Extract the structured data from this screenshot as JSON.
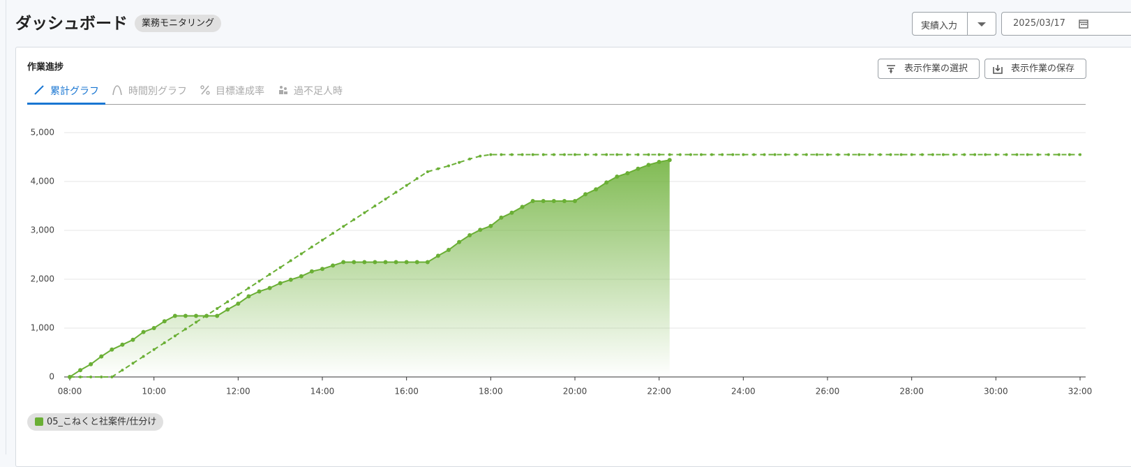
{
  "header": {
    "title": "ダッシュボード",
    "badge": "業務モニタリング",
    "mode_select": "実績入力",
    "date": "2025/03/17"
  },
  "card": {
    "title": "作業進捗",
    "buttons": [
      "表示作業の選択",
      "表示作業の保存"
    ],
    "tabs": [
      "累計グラフ",
      "時間別グラフ",
      "目標達成率",
      "過不足人時"
    ],
    "active_tab": 0
  },
  "chart_data": {
    "type": "line",
    "x": [
      8,
      8.25,
      8.5,
      8.75,
      9,
      9.25,
      9.5,
      9.75,
      10,
      10.25,
      10.5,
      10.75,
      11,
      11.25,
      11.5,
      11.75,
      12,
      12.25,
      12.5,
      12.75,
      13,
      13.25,
      13.5,
      13.75,
      14,
      14.25,
      14.5,
      14.75,
      15,
      15.25,
      15.5,
      15.75,
      16,
      16.25,
      16.5,
      16.75,
      17,
      17.25,
      17.5,
      17.75,
      18,
      18.25,
      18.5,
      18.75,
      19,
      19.25,
      19.5,
      19.75,
      20,
      20.25,
      20.5,
      20.75,
      21,
      21.25,
      21.5,
      21.75,
      22,
      22.25,
      22.5,
      22.75,
      23,
      23.25,
      23.5,
      23.75,
      24,
      24.25,
      24.5,
      24.75,
      25,
      25.25,
      25.5,
      25.75,
      26,
      26.25,
      26.5,
      26.75,
      27,
      27.25,
      27.5,
      27.75,
      28,
      28.25,
      28.5,
      28.75,
      29,
      29.25,
      29.5,
      29.75,
      30,
      30.25,
      30.5,
      30.75,
      31,
      31.25,
      31.5,
      31.75,
      32
    ],
    "series": [
      {
        "name": "05_こねくと社案件/仕分け",
        "color": "#6aaf35",
        "values": [
          0,
          140,
          260,
          420,
          560,
          660,
          760,
          920,
          1000,
          1140,
          1250,
          1250,
          1250,
          1250,
          1250,
          1380,
          1500,
          1650,
          1750,
          1820,
          1920,
          1990,
          2060,
          2160,
          2210,
          2280,
          2350,
          2350,
          2350,
          2350,
          2350,
          2350,
          2350,
          2350,
          2350,
          2480,
          2600,
          2760,
          2900,
          3010,
          3090,
          3260,
          3360,
          3480,
          3600,
          3600,
          3600,
          3600,
          3600,
          3740,
          3840,
          3980,
          4100,
          4170,
          4260,
          4340,
          4400,
          4440,
          null,
          null,
          null,
          null,
          null,
          null,
          null,
          null,
          null,
          null,
          null,
          null,
          null,
          null,
          null,
          null,
          null,
          null,
          null,
          null,
          null,
          null,
          null,
          null,
          null,
          null,
          null,
          null,
          null,
          null,
          null,
          null,
          null,
          null,
          null,
          null,
          null,
          null,
          null
        ],
        "target_values": [
          0,
          0,
          0,
          0,
          0,
          140,
          280,
          420,
          560,
          700,
          840,
          980,
          1120,
          1260,
          1400,
          1540,
          1680,
          1820,
          1960,
          2100,
          2240,
          2380,
          2520,
          2660,
          2800,
          2940,
          3080,
          3220,
          3360,
          3500,
          3640,
          3780,
          3920,
          4060,
          4200,
          4260,
          4320,
          4390,
          4460,
          4520,
          4550,
          4550,
          4550,
          4550,
          4550,
          4550,
          4550,
          4550,
          4550,
          4550,
          4550,
          4550,
          4550,
          4550,
          4550,
          4550,
          4550,
          4550,
          4550,
          4550,
          4550,
          4550,
          4550,
          4550,
          4550,
          4550,
          4550,
          4550,
          4550,
          4550,
          4550,
          4550,
          4550,
          4550,
          4550,
          4550,
          4550,
          4550,
          4550,
          4550,
          4550,
          4550,
          4550,
          4550,
          4550,
          4550,
          4550,
          4550,
          4550,
          4550,
          4550,
          4550,
          4550,
          4550,
          4550,
          4550,
          4550
        ]
      }
    ],
    "xlim": [
      8,
      32
    ],
    "xticks": [
      {
        "value": 8,
        "label": "08:00"
      },
      {
        "value": 10,
        "label": "10:00"
      },
      {
        "value": 12,
        "label": "12:00"
      },
      {
        "value": 14,
        "label": "14:00"
      },
      {
        "value": 16,
        "label": "16:00"
      },
      {
        "value": 18,
        "label": "18:00"
      },
      {
        "value": 20,
        "label": "20:00"
      },
      {
        "value": 22,
        "label": "22:00"
      },
      {
        "value": 24,
        "label": "24:00"
      },
      {
        "value": 26,
        "label": "26:00"
      },
      {
        "value": 28,
        "label": "28:00"
      },
      {
        "value": 30,
        "label": "30:00"
      },
      {
        "value": 32,
        "label": "32:00"
      }
    ],
    "ylim": [
      0,
      5000
    ],
    "yticks": [
      0,
      {
        "value": 1000,
        "label": "1,000"
      },
      {
        "value": 2000,
        "label": "2,000"
      },
      {
        "value": 3000,
        "label": "3,000"
      },
      {
        "value": 4000,
        "label": "4,000"
      },
      {
        "value": 5000,
        "label": "5,000"
      }
    ],
    "grid": true
  }
}
